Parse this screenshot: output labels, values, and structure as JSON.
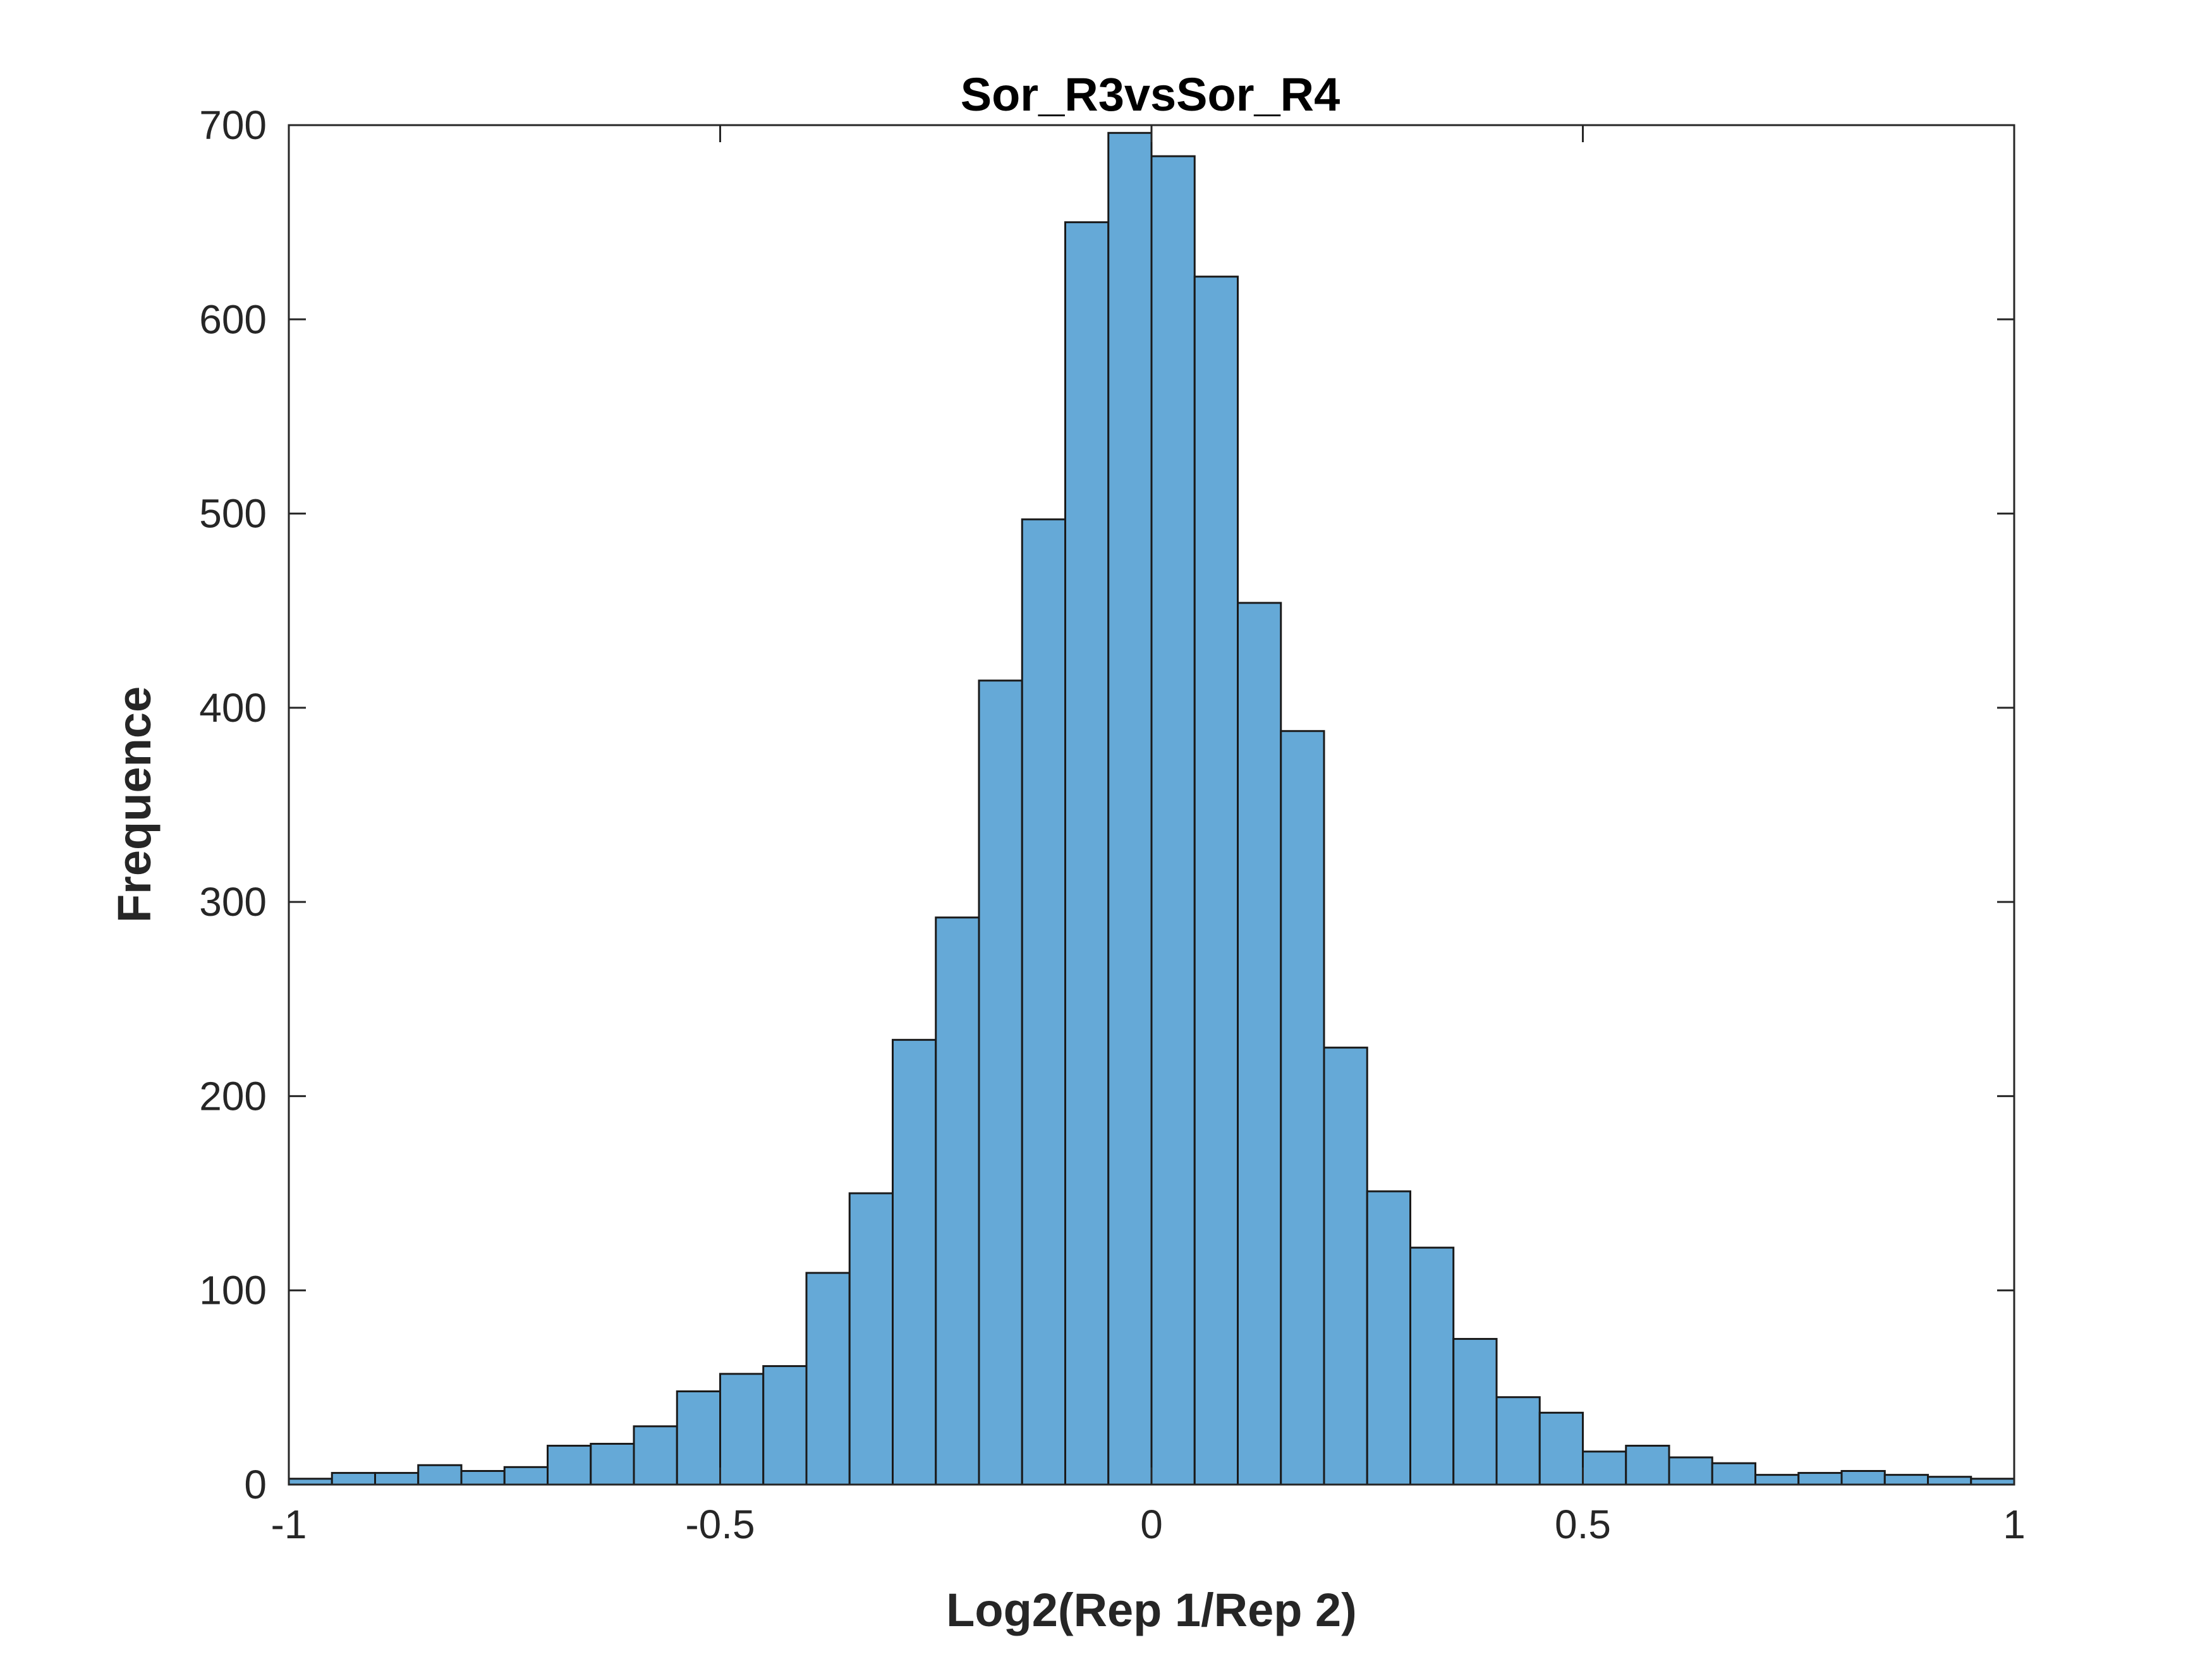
{
  "chart_data": {
    "type": "bar",
    "title": "Sor_R3vsSor_R4",
    "xlabel": "Log2(Rep 1/Rep 2)",
    "ylabel": "Frequence",
    "xlim": [
      -1,
      1
    ],
    "ylim": [
      0,
      700
    ],
    "xticks": [
      "-1",
      "-0.5",
      "0",
      "0.5",
      "1"
    ],
    "yticks": [
      "0",
      "100",
      "200",
      "300",
      "400",
      "500",
      "600",
      "700"
    ],
    "bin_edges": [
      -1.0,
      -0.95,
      -0.9,
      -0.85,
      -0.8,
      -0.75,
      -0.7,
      -0.65,
      -0.6,
      -0.55,
      -0.5,
      -0.45,
      -0.4,
      -0.35,
      -0.3,
      -0.25,
      -0.2,
      -0.15,
      -0.1,
      -0.05,
      0.0,
      0.05,
      0.1,
      0.15,
      0.2,
      0.25,
      0.3,
      0.35,
      0.4,
      0.45,
      0.5,
      0.55,
      0.6,
      0.65,
      0.7,
      0.75,
      0.8,
      0.85,
      0.9,
      0.95,
      1.0
    ],
    "values": [
      3,
      6,
      6,
      10,
      7,
      9,
      20,
      21,
      30,
      48,
      57,
      61,
      109,
      150,
      229,
      292,
      414,
      497,
      650,
      696,
      684,
      622,
      454,
      388,
      225,
      151,
      122,
      75,
      45,
      37,
      17,
      20,
      14,
      11,
      5,
      6,
      7,
      5,
      4,
      3
    ],
    "grid": false,
    "bar_color": "#65a9d7",
    "edge_color": "#1a1a1a"
  }
}
